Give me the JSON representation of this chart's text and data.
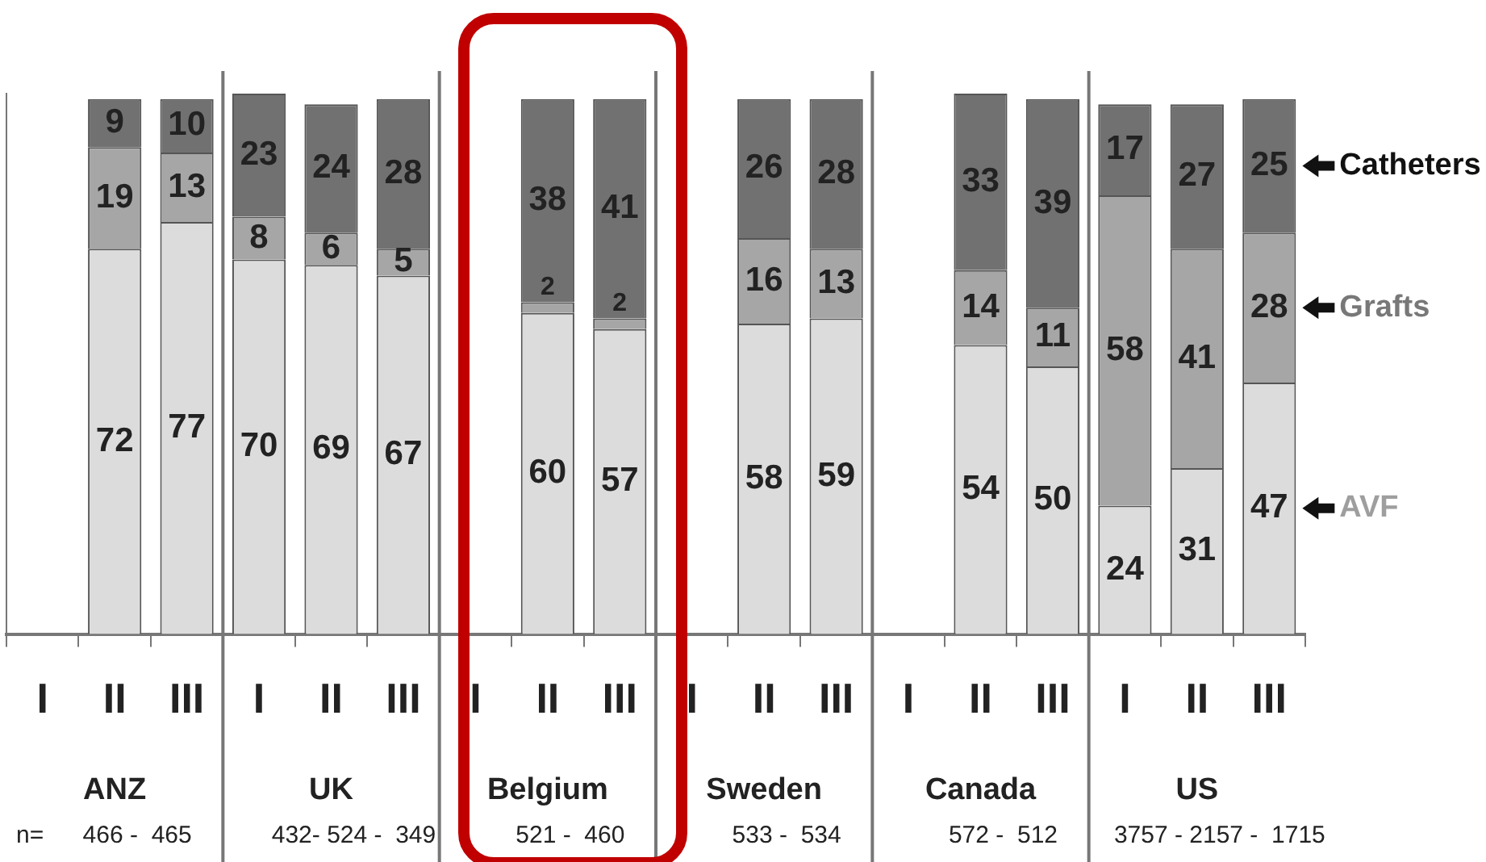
{
  "chart_data": {
    "type": "bar",
    "stacked": true,
    "data_labels": true,
    "grid": false,
    "tick_labels": "x",
    "legend": "right",
    "ylim": [
      0,
      101
    ],
    "categories": [
      "I",
      "II",
      "III",
      "I",
      "II",
      "III",
      "I",
      "II",
      "III",
      "I",
      "II",
      "III",
      "I",
      "II",
      "III",
      "I",
      "II",
      "III"
    ],
    "series": [
      {
        "name": "AVF",
        "color": "#dcdcdc",
        "values": [
          null,
          72,
          77,
          70,
          69,
          67,
          null,
          60,
          57,
          null,
          58,
          59,
          null,
          54,
          50,
          24,
          31,
          47
        ]
      },
      {
        "name": "Grafts",
        "color": "#a6a6a6",
        "values": [
          null,
          19,
          13,
          8,
          6,
          5,
          null,
          2,
          2,
          null,
          16,
          13,
          null,
          14,
          11,
          58,
          41,
          28
        ]
      },
      {
        "name": "Catheters",
        "color": "#717171",
        "values": [
          null,
          9,
          10,
          23,
          24,
          28,
          null,
          38,
          41,
          null,
          26,
          28,
          null,
          33,
          39,
          17,
          27,
          25
        ]
      }
    ],
    "annotations": [
      "ANZ",
      "UK",
      "Belgium",
      "Sweden",
      "Canada",
      "US",
      "n=",
      "466 -  465",
      "432- 524 -  349",
      "521 -  460",
      "533 -  534",
      "572 -  512",
      "3757 - 2157 -  1715"
    ]
  }
}
